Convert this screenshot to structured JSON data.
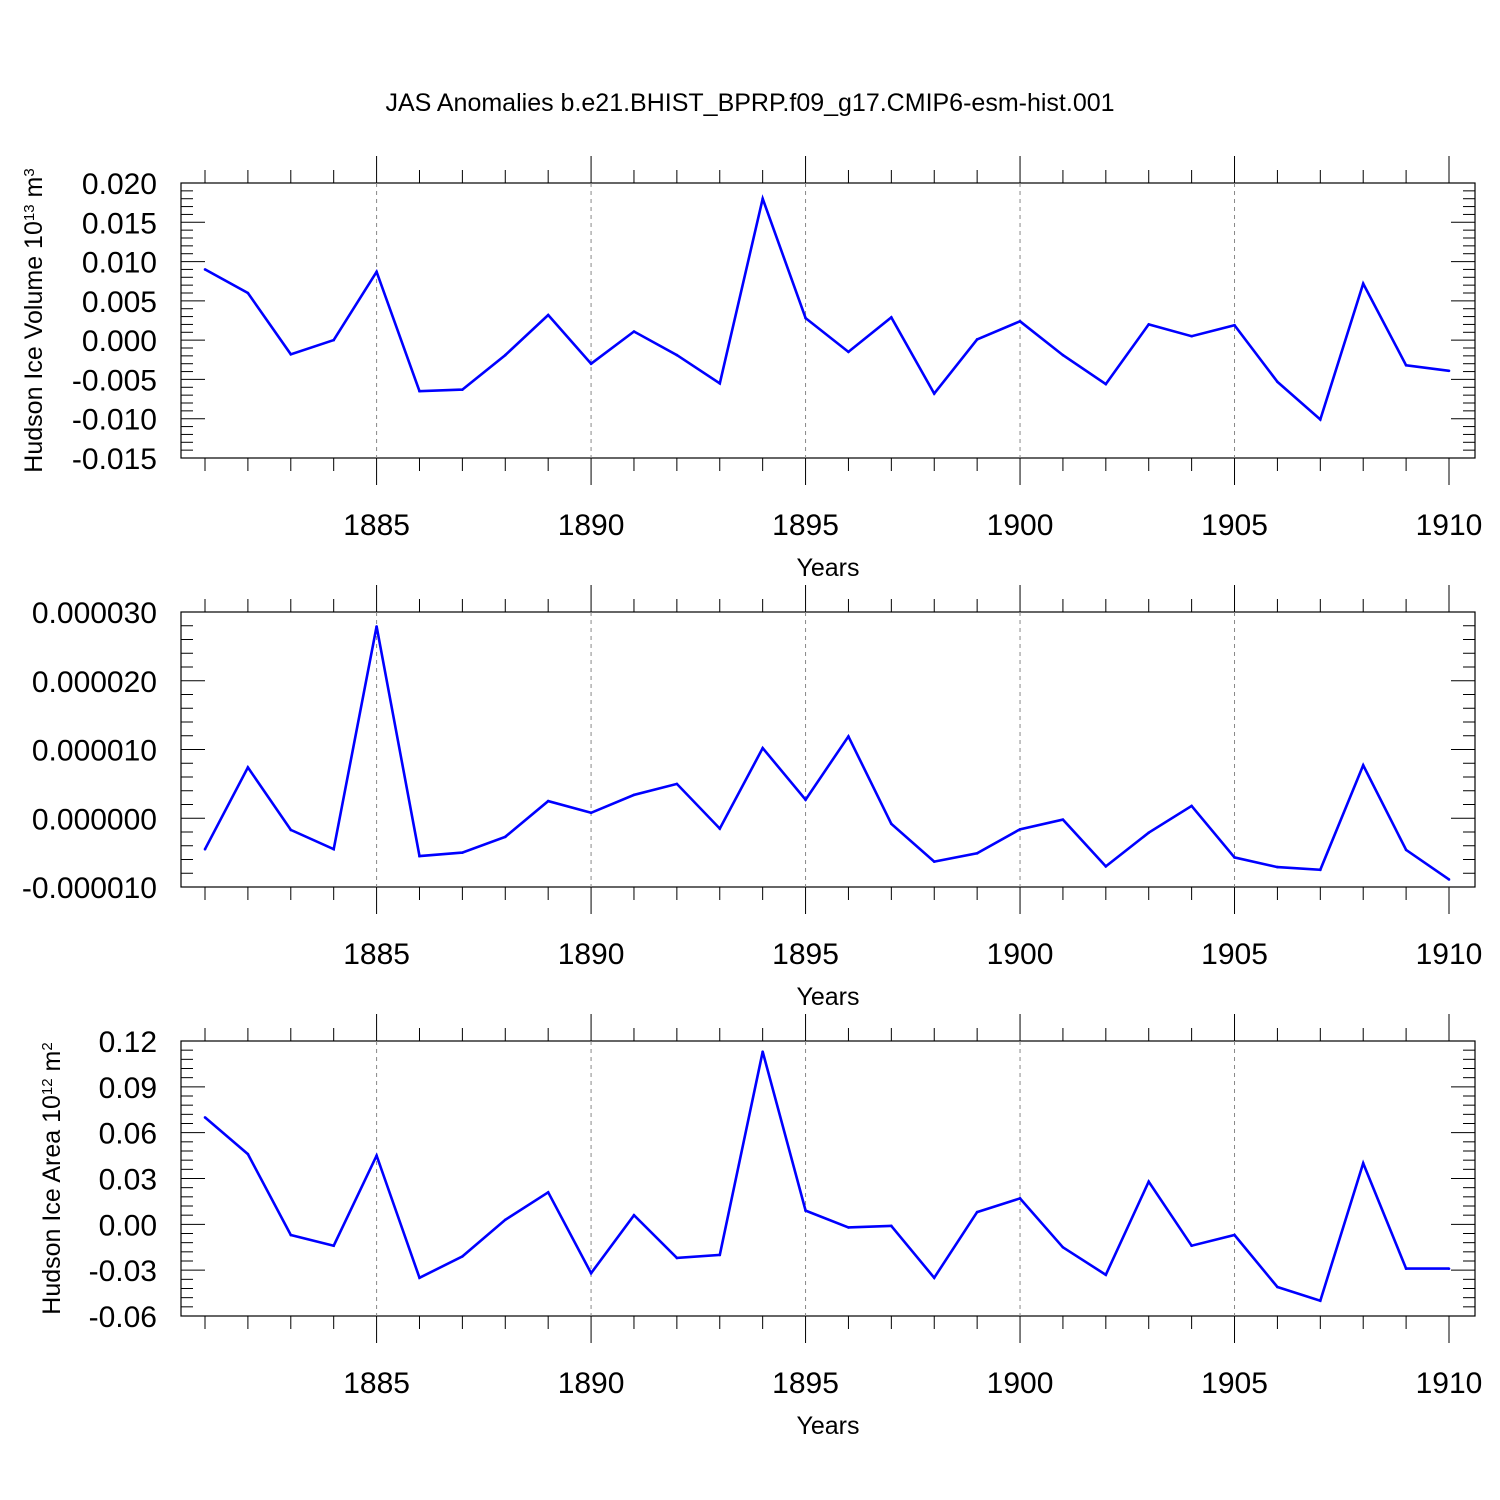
{
  "title": "JAS Anomalies b.e21.BHIST_BPRP.f09_g17.CMIP6-esm-hist.001",
  "colors": {
    "line": "#0000ff",
    "axis": "#000000",
    "grid": "#888888"
  },
  "chart_data": [
    {
      "type": "line",
      "xlabel": "Years",
      "ylabel_prefix": "Hudson Ice Volume 10",
      "ylabel_exp": "13",
      "ylabel_unit": " m",
      "ylabel_unit_exp": "3",
      "xlim": [
        1881,
        1910
      ],
      "ylim": [
        -0.015,
        0.02
      ],
      "x_ticks": [
        "1885",
        "1890",
        "1895",
        "1900",
        "1905",
        "1910"
      ],
      "y_ticks": [
        "0.020",
        "0.015",
        "0.010",
        "0.005",
        "0.000",
        "-0.005",
        "-0.010",
        "-0.015"
      ],
      "x": [
        1881,
        1882,
        1883,
        1884,
        1885,
        1886,
        1887,
        1888,
        1889,
        1890,
        1891,
        1892,
        1893,
        1894,
        1895,
        1896,
        1897,
        1898,
        1899,
        1900,
        1901,
        1902,
        1903,
        1904,
        1905,
        1906,
        1907,
        1908,
        1909,
        1910
      ],
      "values": [
        0.009,
        0.006,
        -0.0018,
        0.0,
        0.0087,
        -0.0065,
        -0.0063,
        -0.0019,
        0.0032,
        -0.003,
        0.0011,
        -0.0019,
        -0.0055,
        0.018,
        0.0028,
        -0.0015,
        0.0029,
        -0.0068,
        0.0001,
        0.0024,
        -0.0019,
        -0.0056,
        0.002,
        0.0005,
        0.0019,
        -0.0053,
        -0.0101,
        0.0072,
        -0.0032,
        -0.0039
      ]
    },
    {
      "type": "line",
      "xlabel": "Years",
      "xlim": [
        1881,
        1910
      ],
      "ylim": [
        -1e-05,
        3e-05
      ],
      "x_ticks": [
        "1885",
        "1890",
        "1895",
        "1900",
        "1905",
        "1910"
      ],
      "y_ticks": [
        "0.000030",
        "0.000020",
        "0.000010",
        "0.000000",
        "-0.000010"
      ],
      "x": [
        1881,
        1882,
        1883,
        1884,
        1885,
        1886,
        1887,
        1888,
        1889,
        1890,
        1891,
        1892,
        1893,
        1894,
        1895,
        1896,
        1897,
        1898,
        1899,
        1900,
        1901,
        1902,
        1903,
        1904,
        1905,
        1906,
        1907,
        1908,
        1909,
        1910
      ],
      "values": [
        -4.5e-06,
        7.4e-06,
        -1.7e-06,
        -4.5e-06,
        2.79e-05,
        -5.5e-06,
        -5e-06,
        -2.7e-06,
        2.5e-06,
        8e-07,
        3.4e-06,
        5e-06,
        -1.5e-06,
        1.02e-05,
        2.7e-06,
        1.19e-05,
        -8e-07,
        -6.3e-06,
        -5.1e-06,
        -1.6e-06,
        -2e-07,
        -7e-06,
        -2.1e-06,
        1.8e-06,
        -5.7e-06,
        -7.1e-06,
        -7.5e-06,
        7.7e-06,
        -4.6e-06,
        -8.9e-06
      ]
    },
    {
      "type": "line",
      "xlabel": "Years",
      "ylabel_prefix": "Hudson Ice Area 10",
      "ylabel_exp": "12",
      "ylabel_unit": " m",
      "ylabel_unit_exp": "2",
      "xlim": [
        1881,
        1910
      ],
      "ylim": [
        -0.06,
        0.12
      ],
      "x_ticks": [
        "1885",
        "1890",
        "1895",
        "1900",
        "1905",
        "1910"
      ],
      "y_ticks": [
        "0.12",
        "0.09",
        "0.06",
        "0.03",
        "0.00",
        "-0.03",
        "-0.06"
      ],
      "x": [
        1881,
        1882,
        1883,
        1884,
        1885,
        1886,
        1887,
        1888,
        1889,
        1890,
        1891,
        1892,
        1893,
        1894,
        1895,
        1896,
        1897,
        1898,
        1899,
        1900,
        1901,
        1902,
        1903,
        1904,
        1905,
        1906,
        1907,
        1908,
        1909,
        1910
      ],
      "values": [
        0.07,
        0.046,
        -0.007,
        -0.014,
        0.045,
        -0.035,
        -0.021,
        0.003,
        0.021,
        -0.032,
        0.006,
        -0.022,
        -0.02,
        0.113,
        0.009,
        -0.002,
        -0.001,
        -0.035,
        0.008,
        0.017,
        -0.015,
        -0.033,
        0.028,
        -0.014,
        -0.007,
        -0.041,
        -0.05,
        0.04,
        -0.029,
        -0.029
      ]
    }
  ]
}
